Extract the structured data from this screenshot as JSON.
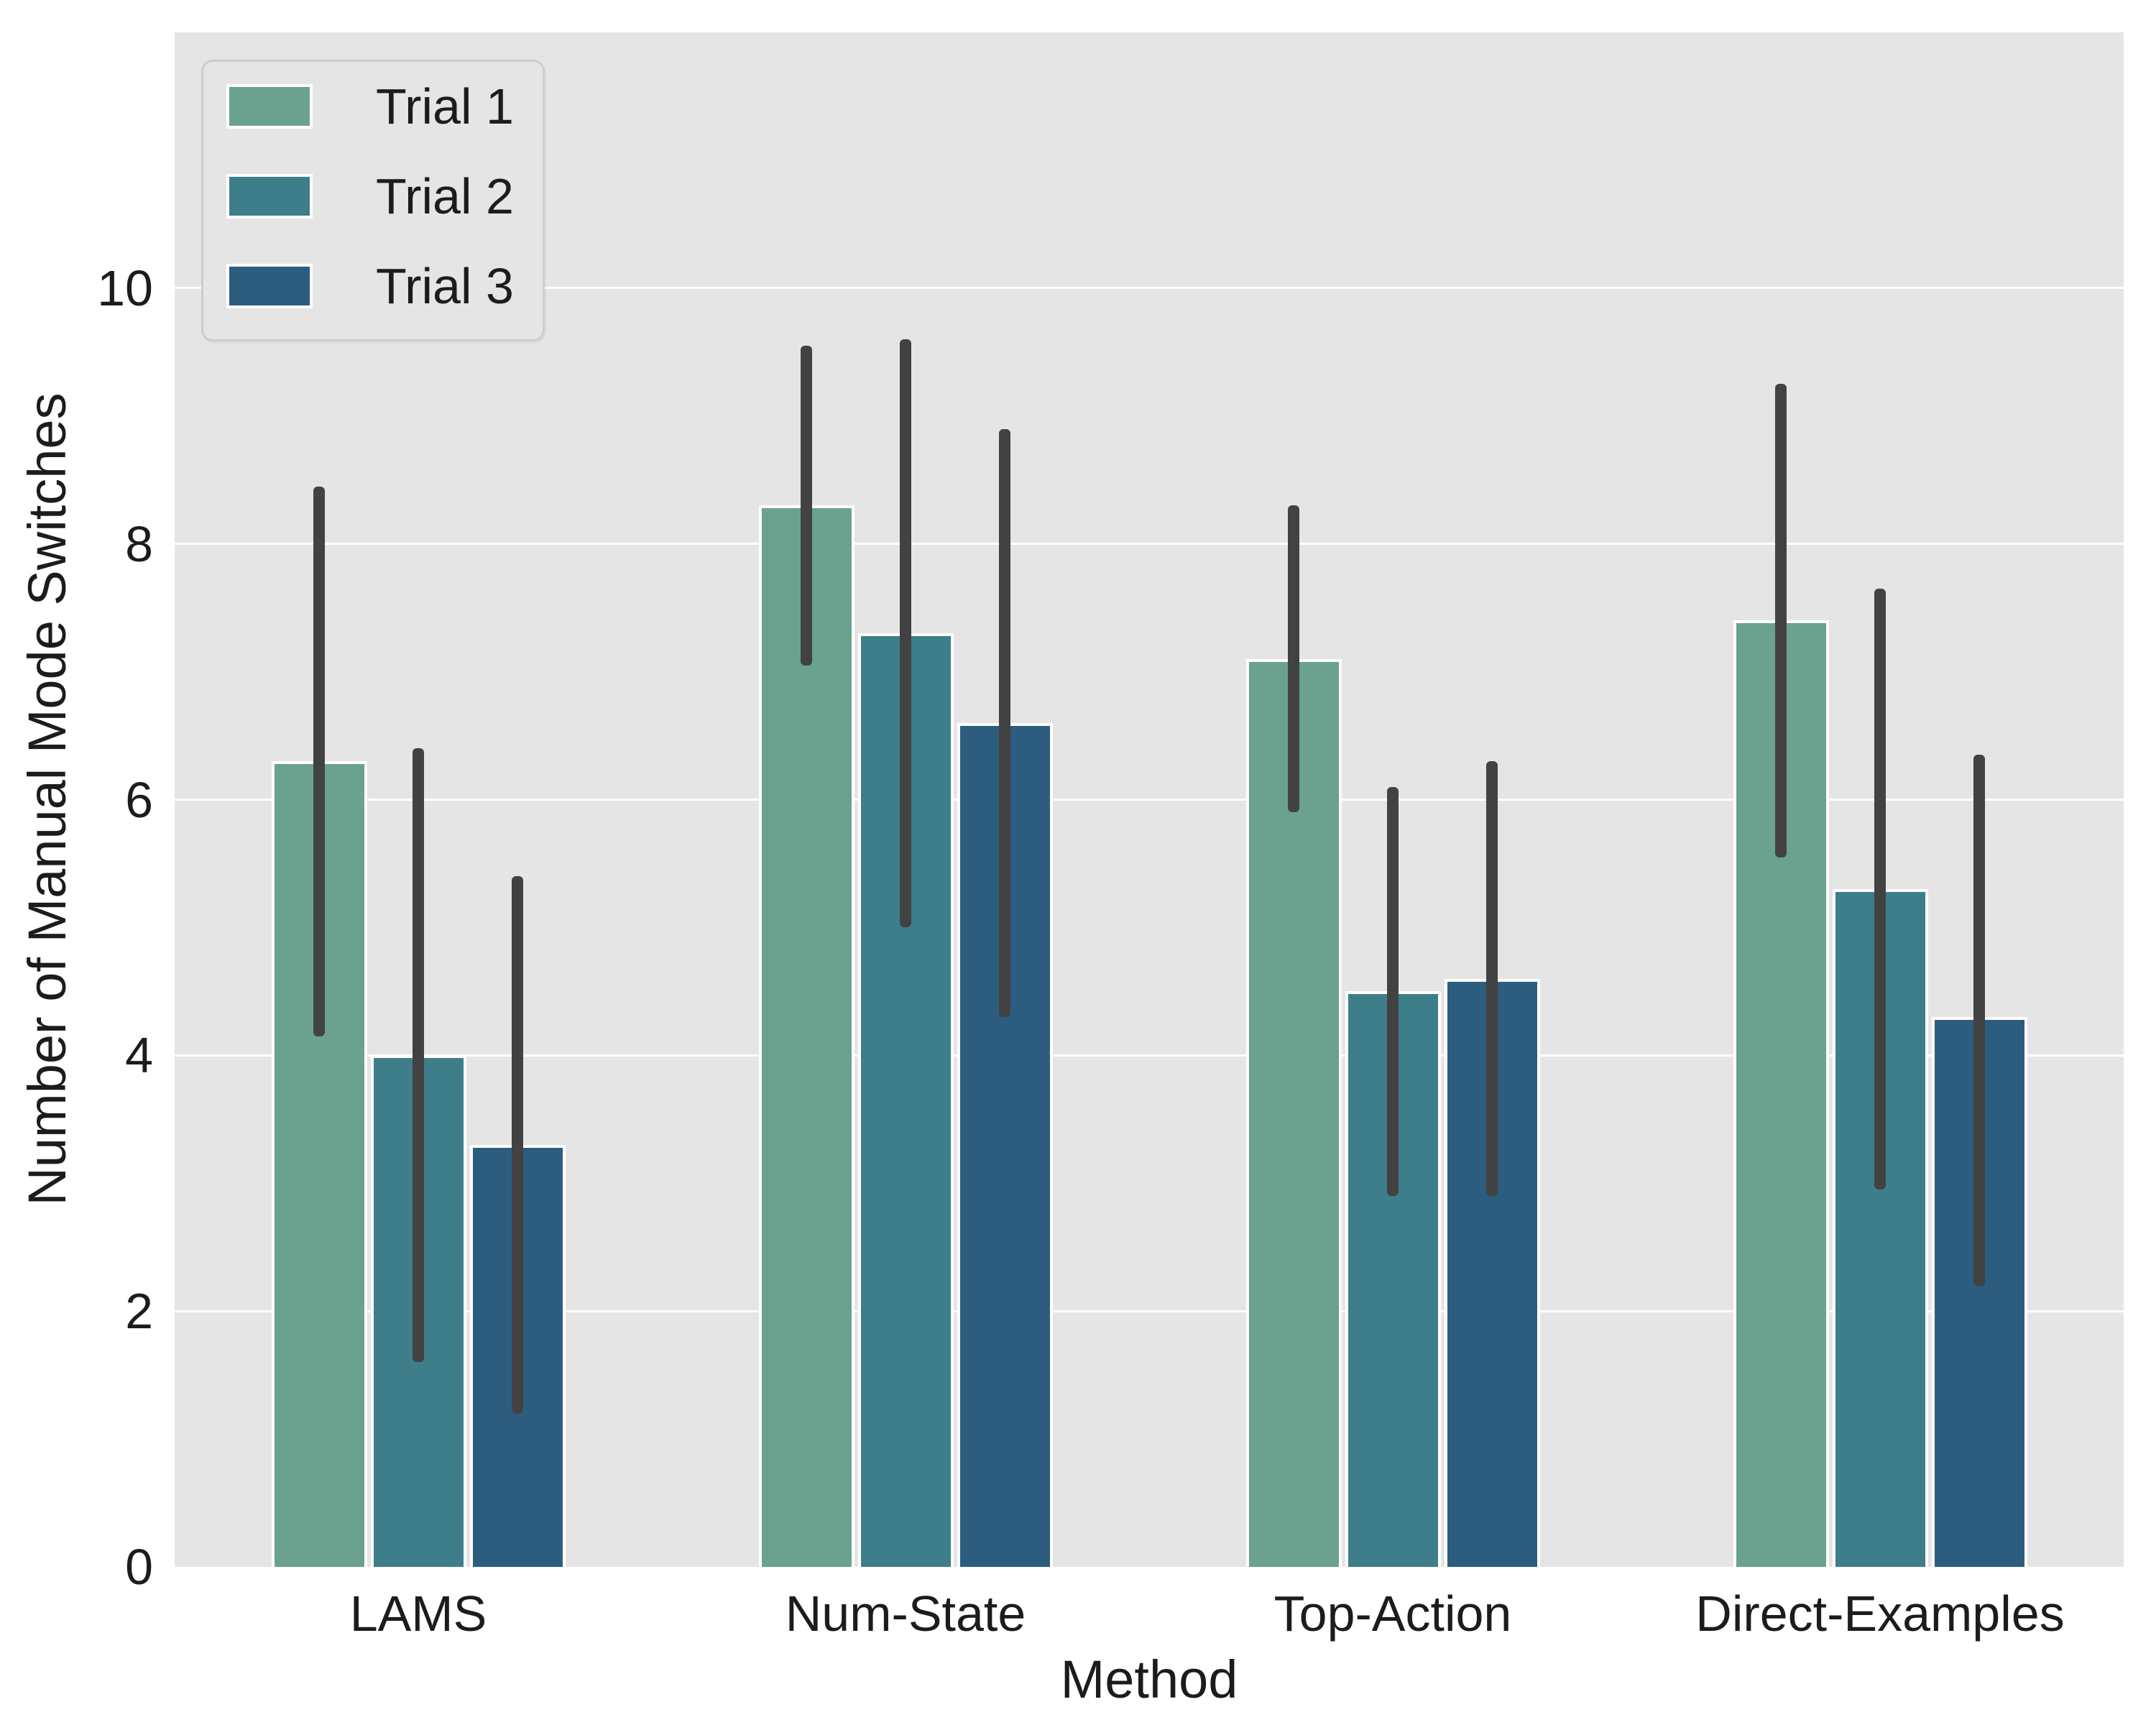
{
  "chart_data": {
    "type": "bar",
    "title": "",
    "xlabel": "Method",
    "ylabel": "Number of Manual Mode Switches",
    "categories": [
      "LAMS",
      "Num-State",
      "Top-Action",
      "Direct-Examples"
    ],
    "series": [
      {
        "name": "Trial 1",
        "color": "#6AA28F",
        "values": [
          6.3,
          8.3,
          7.1,
          7.4
        ],
        "error_low": [
          4.15,
          7.05,
          5.9,
          5.55
        ],
        "error_high": [
          8.45,
          9.55,
          8.3,
          9.25
        ]
      },
      {
        "name": "Trial 2",
        "color": "#3E7E8A",
        "values": [
          4.0,
          7.3,
          4.5,
          5.3
        ],
        "error_low": [
          1.6,
          5.0,
          2.9,
          2.95
        ],
        "error_high": [
          6.4,
          9.6,
          6.1,
          7.65
        ]
      },
      {
        "name": "Trial 3",
        "color": "#2C5D7F",
        "values": [
          3.3,
          6.6,
          4.6,
          4.3
        ],
        "error_low": [
          1.2,
          4.3,
          2.9,
          2.2
        ],
        "error_high": [
          5.4,
          8.9,
          6.3,
          6.35
        ]
      }
    ],
    "ylim": [
      0,
      12
    ],
    "yticks": [
      0,
      2,
      4,
      6,
      8,
      10
    ],
    "grid": true,
    "legend_position": "upper left",
    "colors": {
      "plot_background": "#e5e5e5",
      "figure_background": "#ffffff",
      "gridline": "#ffffff",
      "errorbar": "#424242",
      "text": "#1c1c1c",
      "bar_edge": "#ffffff",
      "legend_border": "#cdcdcd"
    }
  },
  "legend": {
    "items": [
      {
        "label": "Trial 1"
      },
      {
        "label": "Trial 2"
      },
      {
        "label": "Trial 3"
      }
    ]
  }
}
